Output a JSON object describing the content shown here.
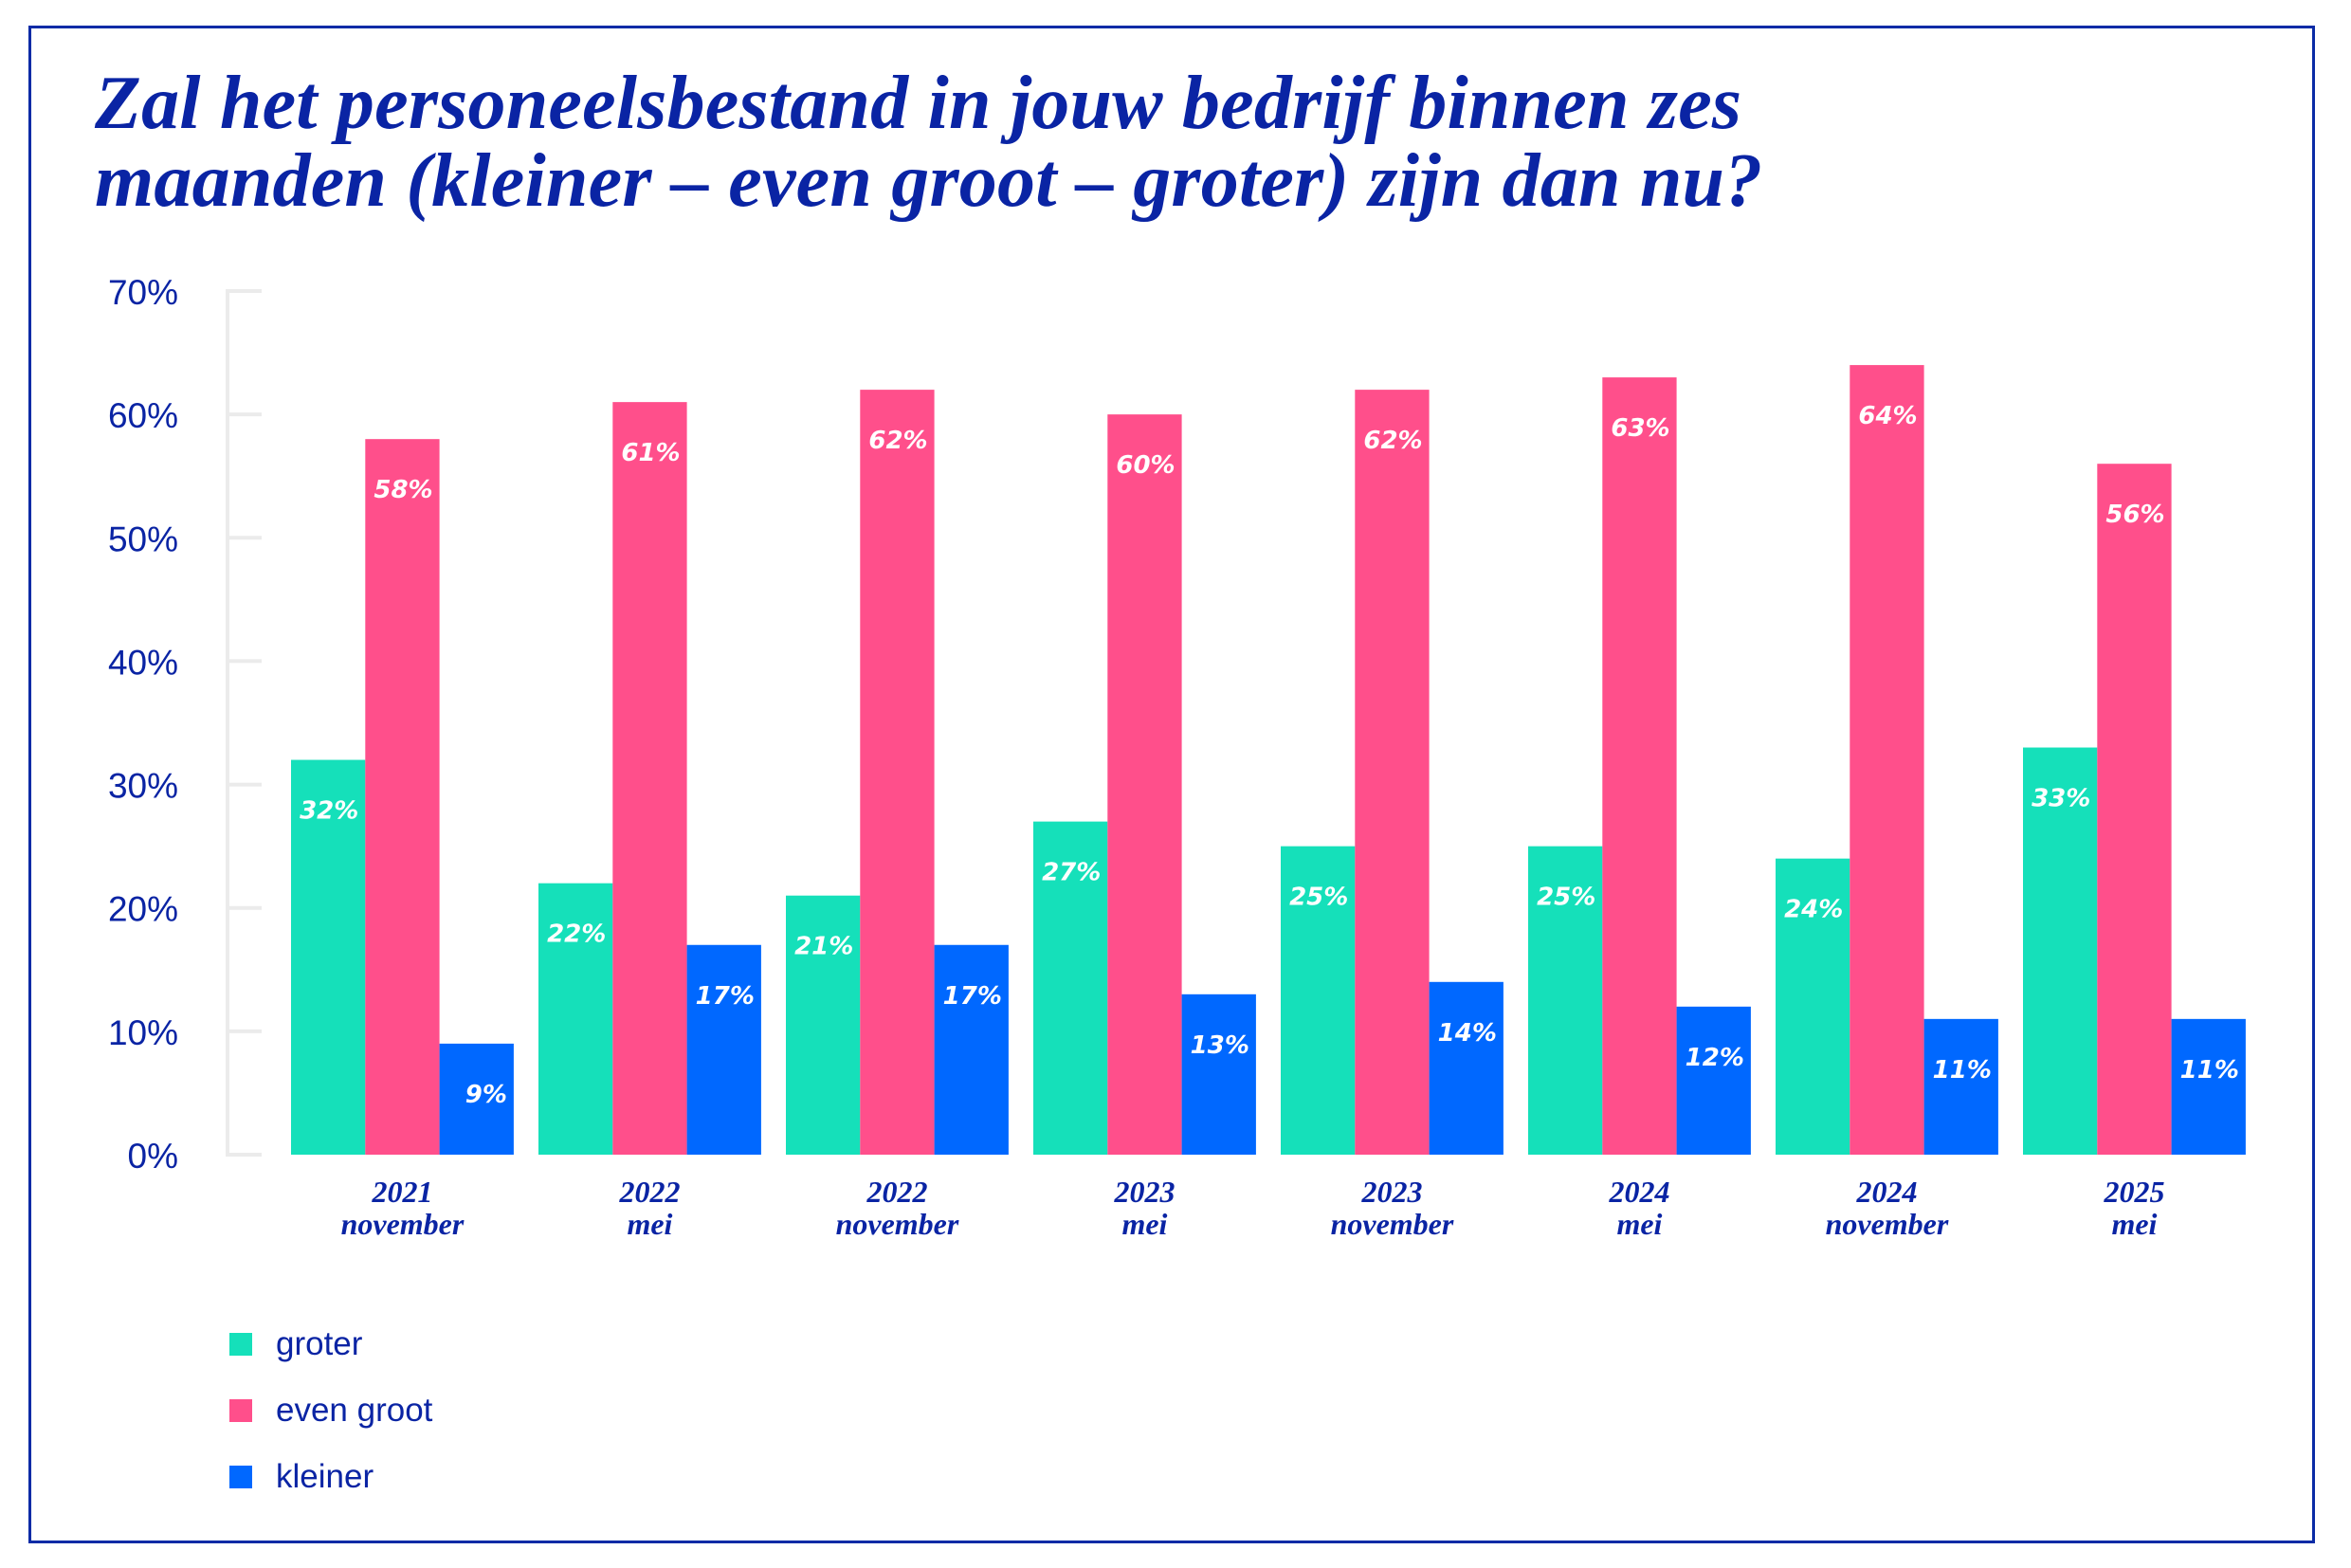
{
  "colors": {
    "border": "#0A2BA6",
    "text": "#0A24A4",
    "axis": "#EBEBEB",
    "groter": "#15E0BA",
    "even_groot": "#FF4F8B",
    "kleiner": "#0068FF"
  },
  "chart_data": {
    "type": "bar",
    "title": "Zal het personeelsbestand in jouw bedrijf binnen zes maanden (kleiner – even groot – groter) zijn dan nu?",
    "title_lines": [
      "Zal het personeelsbestand in jouw bedrijf binnen zes",
      "maanden (kleiner – even groot – groter) zijn dan nu?"
    ],
    "xlabel": "",
    "ylabel": "",
    "ylim": [
      0,
      70
    ],
    "yticks": [
      0,
      10,
      20,
      30,
      40,
      50,
      60,
      70
    ],
    "ytick_labels": [
      "0%",
      "10%",
      "20%",
      "30%",
      "40%",
      "50%",
      "60%",
      "70%"
    ],
    "grid": false,
    "legend_position": "bottom-left",
    "categories": [
      [
        "2021",
        "november"
      ],
      [
        "2022",
        "mei"
      ],
      [
        "2022",
        "november"
      ],
      [
        "2023",
        "mei"
      ],
      [
        "2023",
        "november"
      ],
      [
        "2024",
        "mei"
      ],
      [
        "2024",
        "november"
      ],
      [
        "2025",
        "mei"
      ]
    ],
    "series": [
      {
        "name": "groter",
        "color_key": "groter",
        "values": [
          32,
          22,
          21,
          27,
          25,
          25,
          24,
          33
        ]
      },
      {
        "name": "even groot",
        "color_key": "even_groot",
        "values": [
          58,
          61,
          62,
          60,
          62,
          63,
          64,
          56
        ]
      },
      {
        "name": "kleiner",
        "color_key": "kleiner",
        "values": [
          9,
          17,
          17,
          13,
          14,
          12,
          11,
          11
        ]
      }
    ],
    "value_suffix": "%"
  },
  "legend": {
    "items": [
      {
        "label": "groter",
        "color": "#15E0BA"
      },
      {
        "label": "even groot",
        "color": "#FF4F8B"
      },
      {
        "label": "kleiner",
        "color": "#0068FF"
      }
    ]
  }
}
